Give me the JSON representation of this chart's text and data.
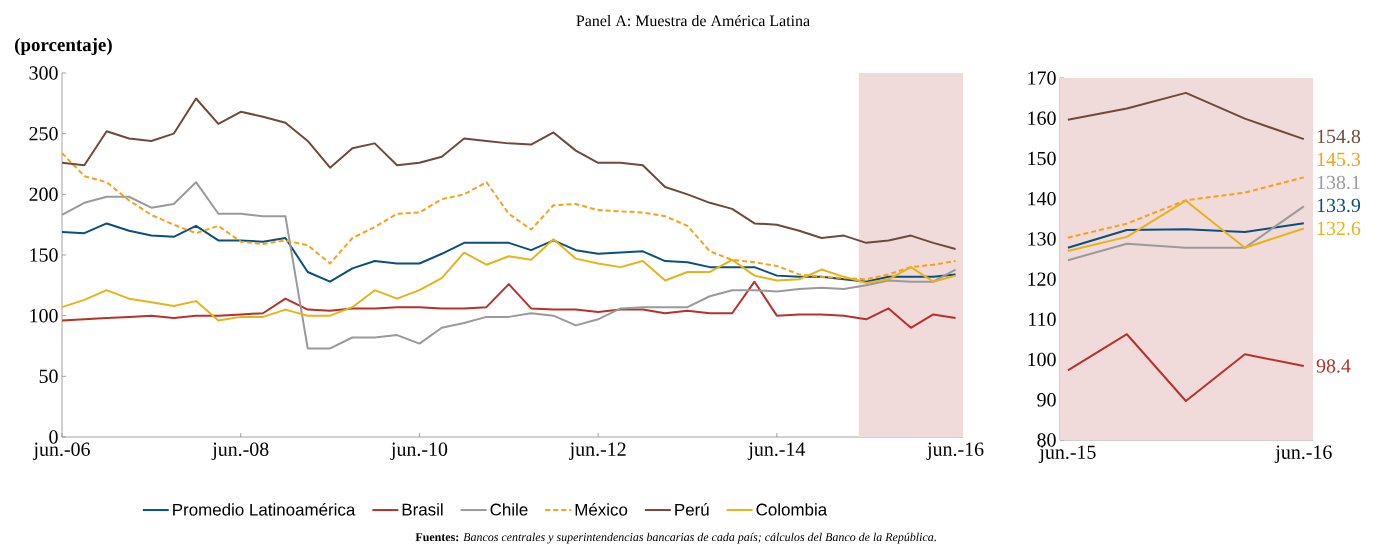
{
  "chart_data": [
    {
      "type": "line",
      "title": "Panel A: Muestra de América Latina",
      "ylabel": "(porcentaje)",
      "annotations": [
        "**Fuentes:** *Bancos centrales y superintendencias bancarias de cada país; cálculos del Banco de la República*."
      ],
      "x": [
        "2006-06",
        "2006-09",
        "2006-12",
        "2007-03",
        "2007-06",
        "2007-09",
        "2007-12",
        "2008-03",
        "2008-06",
        "2008-09",
        "2008-12",
        "2009-03",
        "2009-06",
        "2009-09",
        "2009-12",
        "2010-03",
        "2010-06",
        "2010-09",
        "2010-12",
        "2011-03",
        "2011-06",
        "2011-09",
        "2011-12",
        "2012-03",
        "2012-06",
        "2012-09",
        "2012-12",
        "2013-03",
        "2013-06",
        "2013-09",
        "2013-12",
        "2014-03",
        "2014-06",
        "2014-09",
        "2014-12",
        "2015-03",
        "2015-06",
        "2015-09",
        "2015-12",
        "2016-03",
        "2016-06"
      ],
      "series": [
        {
          "name": "Promedio Latinoamérica",
          "color": "#0b4f7c",
          "values": [
            169,
            168,
            176,
            170,
            166,
            165,
            174,
            162,
            162,
            161,
            164,
            136,
            128,
            139,
            145,
            143,
            143,
            151,
            160,
            160,
            160,
            154,
            162,
            154,
            151,
            152,
            153,
            145,
            144,
            140,
            140,
            140,
            133,
            132,
            132,
            130,
            128,
            132,
            132,
            132,
            134
          ]
        },
        {
          "name": "Brasil",
          "color": "#b8312a",
          "values": [
            96,
            97,
            98,
            99,
            100,
            98,
            100,
            100,
            101,
            102,
            114,
            105,
            104,
            106,
            106,
            107,
            107,
            106,
            106,
            107,
            126,
            106,
            105,
            105,
            103,
            105,
            105,
            102,
            104,
            102,
            102,
            128,
            100,
            101,
            101,
            100,
            97,
            106,
            90,
            101,
            98
          ]
        },
        {
          "name": "Chile",
          "color": "#9a9a9a",
          "values": [
            183,
            193,
            198,
            198,
            189,
            192,
            210,
            184,
            184,
            182,
            182,
            73,
            73,
            82,
            82,
            84,
            77,
            90,
            94,
            99,
            99,
            102,
            100,
            92,
            97,
            106,
            107,
            107,
            107,
            116,
            121,
            121,
            120,
            122,
            123,
            122,
            125,
            129,
            128,
            128,
            138
          ]
        },
        {
          "name": "México",
          "color": "#f7a11a",
          "line_style": "dashed",
          "values": [
            234,
            215,
            210,
            195,
            183,
            175,
            168,
            174,
            161,
            159,
            162,
            158,
            143,
            164,
            173,
            184,
            185,
            196,
            200,
            210,
            184,
            171,
            191,
            192,
            187,
            186,
            185,
            182,
            174,
            153,
            146,
            144,
            141,
            134,
            132,
            131,
            130,
            134,
            140,
            142,
            145
          ]
        },
        {
          "name": "Perú",
          "color": "#6e4a3a",
          "values": [
            226,
            224,
            252,
            246,
            244,
            250,
            279,
            258,
            268,
            264,
            259,
            244,
            222,
            238,
            242,
            224,
            226,
            231,
            246,
            244,
            242,
            241,
            251,
            236,
            226,
            226,
            224,
            206,
            200,
            193,
            188,
            176,
            175,
            170,
            164,
            166,
            160,
            162,
            166,
            160,
            155
          ]
        },
        {
          "name": "Colombia",
          "color": "#e6b31b",
          "values": [
            107,
            113,
            121,
            114,
            111,
            108,
            112,
            96,
            99,
            99,
            105,
            100,
            100,
            107,
            121,
            114,
            121,
            131,
            152,
            142,
            149,
            146,
            163,
            147,
            143,
            140,
            145,
            129,
            136,
            136,
            146,
            133,
            129,
            130,
            138,
            132,
            127,
            130,
            140,
            128,
            133
          ]
        }
      ],
      "xlim": [
        "2006-06",
        "2016-07"
      ],
      "ylim": [
        0,
        300
      ],
      "yticks": [
        0,
        50,
        100,
        150,
        200,
        250,
        300
      ],
      "xticks": [
        {
          "value": "2006-06",
          "label": "jun.-06"
        },
        {
          "value": "2008-06",
          "label": "jun.-08"
        },
        {
          "value": "2010-06",
          "label": "jun.-10"
        },
        {
          "value": "2012-06",
          "label": "jun.-12"
        },
        {
          "value": "2014-06",
          "label": "jun.-14"
        },
        {
          "value": "2016-06",
          "label": "jun.-16"
        }
      ],
      "bands": [
        {
          "axis": "x",
          "from": "2015-05",
          "to": "2016-07",
          "color": "#f0dada"
        }
      ],
      "legend": "bottom"
    },
    {
      "type": "line",
      "x": [
        "2015-06",
        "2015-09",
        "2015-12",
        "2016-03",
        "2016-06"
      ],
      "series": [
        {
          "color": "#0b4f7c",
          "values": [
            127.8,
            132.2,
            132.4,
            131.7,
            133.9
          ],
          "value_labels": [
            null,
            null,
            null,
            null,
            "133.9"
          ]
        },
        {
          "color": "#b8312a",
          "values": [
            97.3,
            106.3,
            89.7,
            101.3,
            98.4
          ],
          "value_labels": [
            null,
            null,
            null,
            null,
            "98.4"
          ]
        },
        {
          "color": "#9a9a9a",
          "values": [
            124.7,
            128.8,
            127.8,
            127.8,
            138.1
          ],
          "value_labels": [
            null,
            null,
            null,
            null,
            "138.1"
          ]
        },
        {
          "color": "#f7a11a",
          "line_style": "dashed",
          "values": [
            130.3,
            133.8,
            139.6,
            141.5,
            145.3
          ],
          "value_labels": [
            null,
            null,
            null,
            null,
            "145.3"
          ]
        },
        {
          "color": "#6e4a3a",
          "values": [
            159.6,
            162.4,
            166.3,
            159.9,
            154.8
          ],
          "value_labels": [
            null,
            null,
            null,
            null,
            "154.8"
          ]
        },
        {
          "color": "#e6b31b",
          "values": [
            127,
            130.5,
            139.5,
            127.8,
            132.6
          ],
          "value_labels": [
            null,
            null,
            null,
            null,
            "132.6"
          ]
        }
      ],
      "xlim": [
        "2015-05-19",
        "2016-06-15"
      ],
      "ylim": [
        80,
        170
      ],
      "yticks": [
        80,
        90,
        100,
        110,
        120,
        130,
        140,
        150,
        160,
        170
      ],
      "xticks": [
        {
          "value": "2015-06",
          "label": "jun.-15"
        },
        {
          "value": "2016-06",
          "label": "jun.-16"
        }
      ],
      "bands": [
        {
          "axis": "x",
          "from": "2015-05-19",
          "to": "2016-06-15",
          "color": "#f0dada"
        }
      ]
    }
  ]
}
